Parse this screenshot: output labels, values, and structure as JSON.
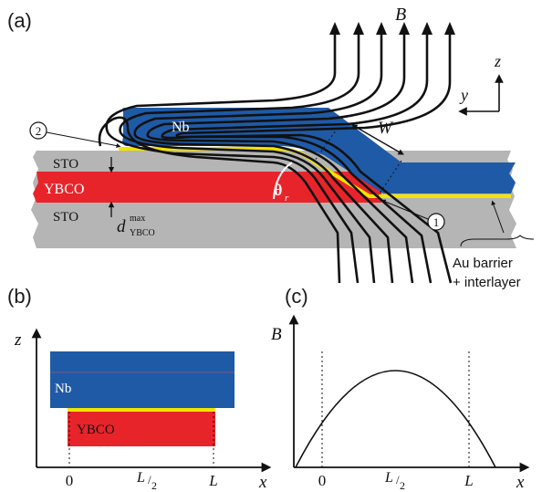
{
  "panel_a": {
    "label": "(a)",
    "field_symbol": "B",
    "axis_z": "z",
    "axis_y": "y",
    "width_symbol": "W",
    "angle_symbol": "θ",
    "angle_subscript": "r",
    "layers": {
      "nb": "Nb",
      "sto_top": "STO",
      "ybco": "YBCO",
      "sto_bottom": "STO"
    },
    "thickness_label": "d",
    "thickness_superscript": "max",
    "thickness_subscript": "YBCO",
    "marker_1": "1",
    "marker_2": "2",
    "barrier_line1": "Au barrier",
    "barrier_line2": "+ interlayer",
    "colors": {
      "nb": "#1f5aa6",
      "ybco": "#e8242b",
      "sto": "#b5b5b5",
      "barrier": "#f2e400"
    }
  },
  "panel_b": {
    "label": "(b)",
    "axis_z": "z",
    "axis_x": "x",
    "nb": "Nb",
    "ybco": "YBCO",
    "tick_0": "0",
    "tick_half_num": "L",
    "tick_half_den": "2",
    "tick_L": "L"
  },
  "panel_c": {
    "label": "(c)",
    "axis_y": "B",
    "axis_x": "x",
    "tick_0": "0",
    "tick_half_num": "L",
    "tick_half_den": "2",
    "tick_L": "L"
  }
}
